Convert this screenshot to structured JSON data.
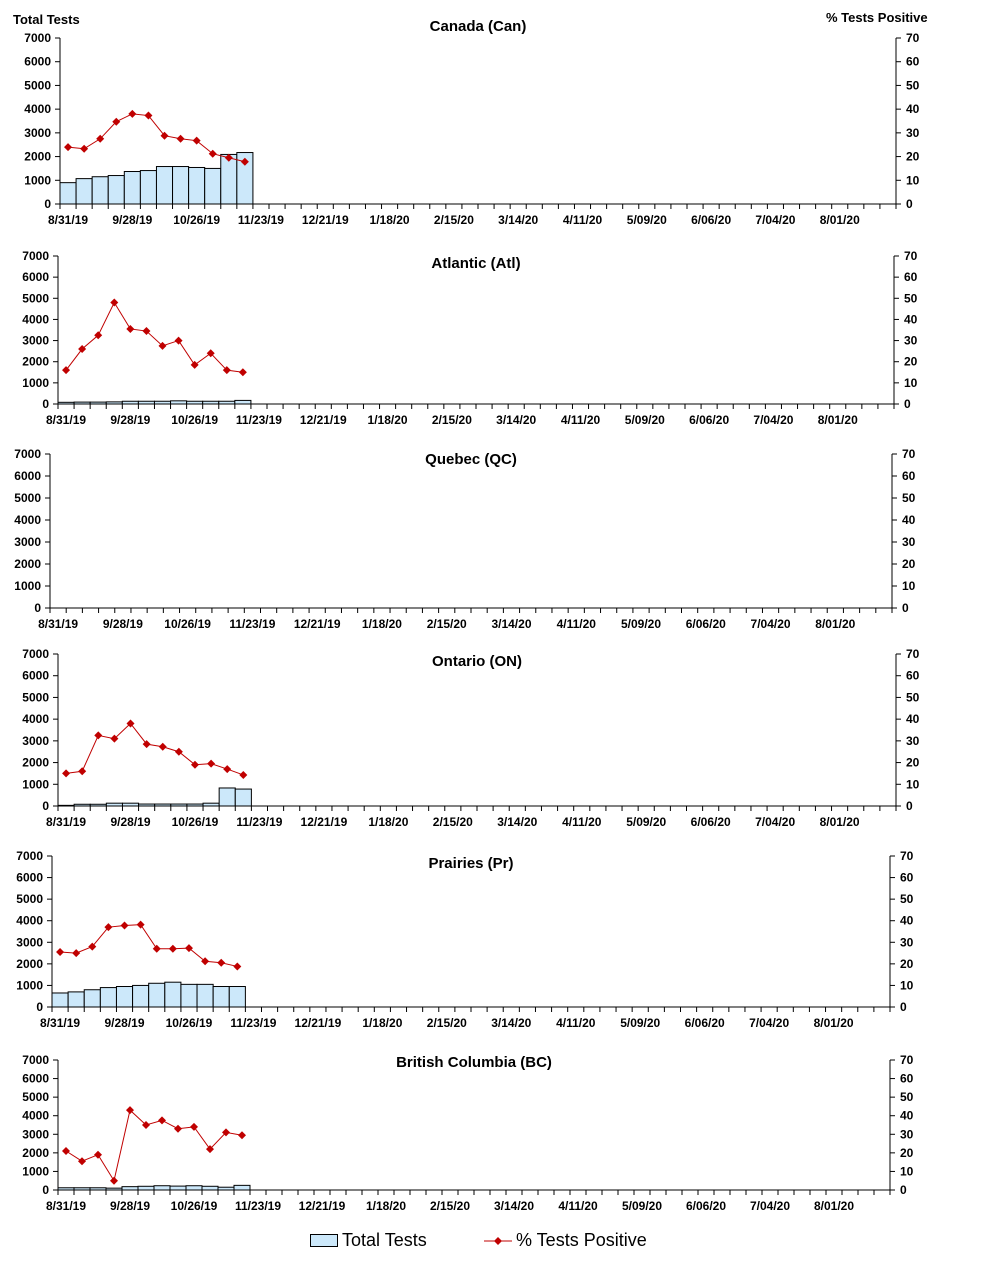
{
  "left_axis_title": "Total Tests",
  "right_axis_title": "% Tests Positive",
  "legend": {
    "bars": "Total Tests",
    "line": "% Tests Positive"
  },
  "colors": {
    "bar_fill": "#cce8fa",
    "bar_stroke": "#000000",
    "line": "#c00000"
  },
  "chart_data": [
    {
      "type": "bar+line",
      "title": "Canada (Can)",
      "ylim": [
        0,
        7000
      ],
      "y2lim": [
        0,
        70
      ],
      "x_tick_labels": [
        "8/31/19",
        "9/28/19",
        "10/26/19",
        "11/23/19",
        "12/21/19",
        "1/18/20",
        "2/15/20",
        "3/14/20",
        "4/11/20",
        "5/09/20",
        "6/06/20",
        "7/04/20",
        "8/01/20"
      ],
      "series": [
        {
          "name": "Total Tests",
          "values": [
            900,
            1070,
            1150,
            1200,
            1370,
            1410,
            1580,
            1580,
            1540,
            1500,
            2090,
            2170
          ]
        },
        {
          "name": "% Tests Positive",
          "values": [
            24,
            23.3,
            27.5,
            34.7,
            38,
            37.3,
            28.8,
            27.5,
            26.7,
            21.2,
            19.5,
            17.8
          ]
        }
      ]
    },
    {
      "type": "bar+line",
      "title": "Atlantic (Atl)",
      "ylim": [
        0,
        7000
      ],
      "y2lim": [
        0,
        70
      ],
      "series": [
        {
          "name": "Total Tests",
          "values": [
            80,
            90,
            90,
            100,
            130,
            130,
            130,
            150,
            130,
            130,
            130,
            170
          ]
        },
        {
          "name": "% Tests Positive",
          "values": [
            16,
            26,
            32.5,
            48,
            35.5,
            34.5,
            27.5,
            30,
            18.5,
            24,
            16,
            15
          ]
        }
      ]
    },
    {
      "type": "bar+line",
      "title": "Quebec (QC)",
      "ylim": [
        0,
        7000
      ],
      "y2lim": [
        0,
        70
      ],
      "series": [
        {
          "name": "Total Tests",
          "values": []
        },
        {
          "name": "% Tests Positive",
          "values": []
        }
      ]
    },
    {
      "type": "bar+line",
      "title": "Ontario (ON)",
      "ylim": [
        0,
        7000
      ],
      "y2lim": [
        0,
        70
      ],
      "series": [
        {
          "name": "Total Tests",
          "values": [
            30,
            80,
            80,
            130,
            130,
            90,
            90,
            90,
            90,
            130,
            830,
            780
          ]
        },
        {
          "name": "% Tests Positive",
          "values": [
            15,
            16,
            32.5,
            31,
            38,
            28.5,
            27.3,
            25,
            19,
            19.5,
            17,
            14.3
          ]
        }
      ]
    },
    {
      "type": "bar+line",
      "title": "Prairies (Pr)",
      "ylim": [
        0,
        7000
      ],
      "y2lim": [
        0,
        70
      ],
      "series": [
        {
          "name": "Total Tests",
          "values": [
            650,
            700,
            800,
            900,
            950,
            1000,
            1100,
            1150,
            1050,
            1050,
            950,
            950
          ]
        },
        {
          "name": "% Tests Positive",
          "values": [
            25.5,
            25,
            28,
            37,
            37.8,
            38.2,
            27,
            27,
            27.3,
            21.2,
            20.5,
            18.8
          ]
        }
      ]
    },
    {
      "type": "bar+line",
      "title": "British Columbia (BC)",
      "ylim": [
        0,
        7000
      ],
      "y2lim": [
        0,
        70
      ],
      "series": [
        {
          "name": "Total Tests",
          "values": [
            120,
            120,
            120,
            100,
            180,
            200,
            230,
            210,
            230,
            200,
            150,
            250
          ]
        },
        {
          "name": "% Tests Positive",
          "values": [
            21,
            15.5,
            19,
            5,
            43,
            35,
            37.5,
            33,
            34,
            22,
            31,
            29.5
          ]
        }
      ]
    }
  ]
}
